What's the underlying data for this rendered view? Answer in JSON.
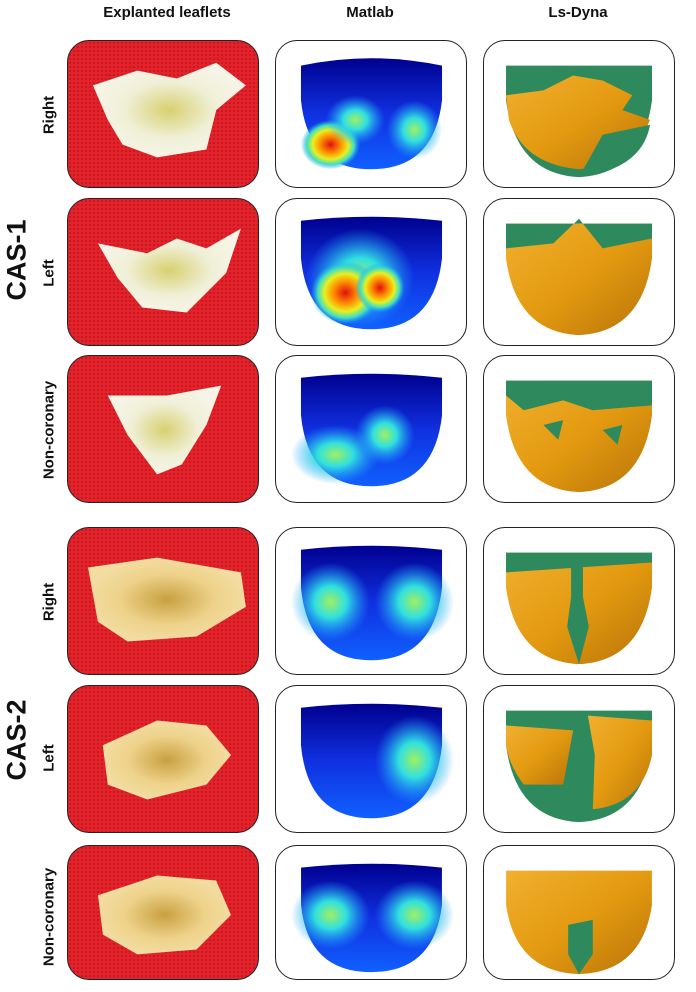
{
  "columns": [
    "Explanted leaflets",
    "Matlab",
    "Ls-Dyna"
  ],
  "groups": [
    {
      "label": "CAS-1",
      "rows": [
        "Right",
        "Left",
        "Non-coronary"
      ]
    },
    {
      "label": "CAS-2",
      "rows": [
        "Right",
        "Left",
        "Non-coronary"
      ]
    }
  ]
}
